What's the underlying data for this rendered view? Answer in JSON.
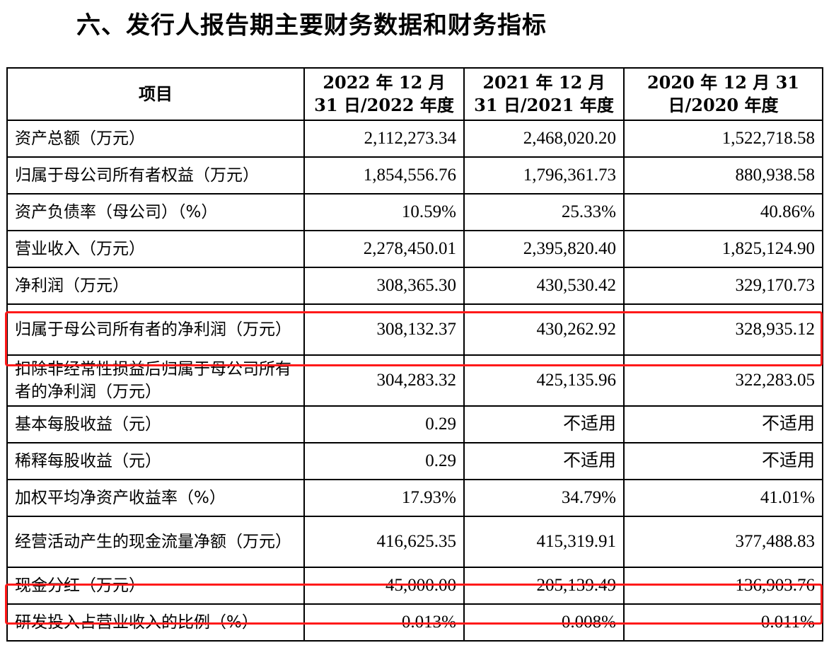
{
  "title": "六、发行人报告期主要财务数据和财务指标",
  "headers": [
    "项目",
    "2022 年 12 月 31 日/2022 年度",
    "2021 年 12 月 31 日/2021 年度",
    "2020 年 12 月 31 日/2020 年度"
  ],
  "rows": [
    {
      "label": "资产总额（万元）",
      "v2022": "2,112,273.34",
      "v2021": "2,468,020.20",
      "v2020": "1,522,718.58"
    },
    {
      "label": "归属于母公司所有者权益（万元）",
      "v2022": "1,854,556.76",
      "v2021": "1,796,361.73",
      "v2020": "880,938.58"
    },
    {
      "label": "资产负债率（母公司）（%）",
      "v2022": "10.59%",
      "v2021": "25.33%",
      "v2020": "40.86%"
    },
    {
      "label": "营业收入（万元）",
      "v2022": "2,278,450.01",
      "v2021": "2,395,820.40",
      "v2020": "1,825,124.90"
    },
    {
      "label": "净利润（万元）",
      "v2022": "308,365.30",
      "v2021": "430,530.42",
      "v2020": "329,170.73"
    },
    {
      "label": "归属于母公司所有者的净利润（万元）",
      "v2022": "308,132.37",
      "v2021": "430,262.92",
      "v2020": "328,935.12"
    },
    {
      "label": "扣除非经常性损益后归属于母公司所有者的净利润（万元）",
      "v2022": "304,283.32",
      "v2021": "425,135.96",
      "v2020": "322,283.05"
    },
    {
      "label": "基本每股收益（元）",
      "v2022": "0.29",
      "v2021": "不适用",
      "v2020": "不适用"
    },
    {
      "label": "稀释每股收益（元）",
      "v2022": "0.29",
      "v2021": "不适用",
      "v2020": "不适用"
    },
    {
      "label": "加权平均净资产收益率（%）",
      "v2022": "17.93%",
      "v2021": "34.79%",
      "v2020": "41.01%"
    },
    {
      "label": "经营活动产生的现金流量净额（万元）",
      "v2022": "416,625.35",
      "v2021": "415,319.91",
      "v2020": "377,488.83"
    },
    {
      "label": "现金分红（万元）",
      "v2022": "45,000.00",
      "v2021": "205,139.49",
      "v2020": "136,903.76"
    },
    {
      "label": "研发投入占营业收入的比例（%）",
      "v2022": "0.013%",
      "v2021": "0.008%",
      "v2020": "0.011%"
    }
  ],
  "highlight_color": "#ff1a1a"
}
